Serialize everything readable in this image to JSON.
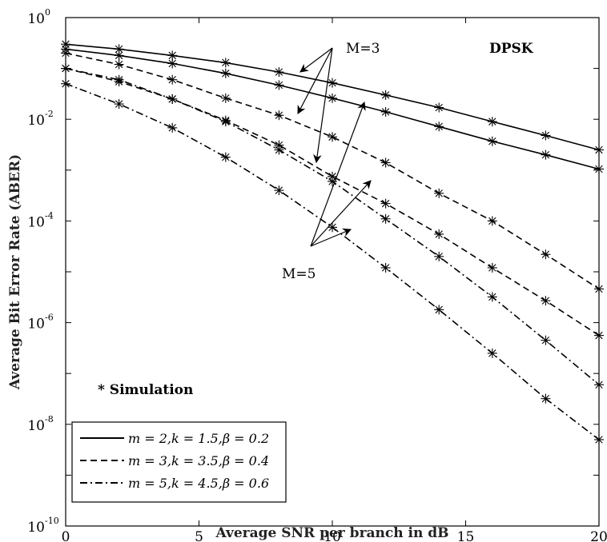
{
  "chart_data": {
    "type": "line",
    "xlabel": "Average SNR per branch in dB",
    "ylabel": "Average Bit Error Rate (ABER)",
    "xlim": [
      0,
      20
    ],
    "ylim": [
      1e-10,
      1
    ],
    "yscale": "log",
    "xticks": [
      0,
      5,
      10,
      15,
      20
    ],
    "yticks": [
      {
        "base": "10",
        "exp": "0",
        "value": 1
      },
      {
        "base": "10",
        "exp": "-2",
        "value": 0.01
      },
      {
        "base": "10",
        "exp": "-4",
        "value": 0.0001
      },
      {
        "base": "10",
        "exp": "-6",
        "value": 1e-06
      },
      {
        "base": "10",
        "exp": "-8",
        "value": 1e-08
      },
      {
        "base": "10",
        "exp": "-10",
        "value": 1e-10
      }
    ],
    "grid": false,
    "legend_position": "bottom-left",
    "annotations": {
      "dpsk": "DPSK",
      "m3": "M=3",
      "m5": "M=5",
      "simulation": "* Simulation"
    },
    "x": [
      0,
      2,
      4,
      6,
      8,
      10,
      12,
      14,
      16,
      18,
      20
    ],
    "series": [
      {
        "name": "m = 2,k = 1.5,β = 0.2",
        "style": "solid",
        "M": 3,
        "values": [
          0.3,
          0.24,
          0.18,
          0.13,
          0.085,
          0.052,
          0.03,
          0.017,
          0.009,
          0.0048,
          0.0025
        ]
      },
      {
        "name": "",
        "style": "solid",
        "M": 5,
        "values": [
          0.24,
          0.18,
          0.125,
          0.08,
          0.047,
          0.026,
          0.014,
          0.0072,
          0.0037,
          0.002,
          0.00105
        ]
      },
      {
        "name": "m = 3,k = 3.5,β = 0.4",
        "style": "dashed",
        "M": 3,
        "values": [
          0.2,
          0.12,
          0.06,
          0.026,
          0.012,
          0.0045,
          0.0014,
          0.00035,
          0.0001,
          2.2e-05,
          4.6e-06
        ]
      },
      {
        "name": "",
        "style": "dashed",
        "M": 5,
        "values": [
          0.1,
          0.055,
          0.025,
          0.0095,
          0.0031,
          0.00075,
          0.00022,
          5.5e-05,
          1.2e-05,
          2.7e-06,
          5.6e-07
        ]
      },
      {
        "name": "m = 5,k = 4.5,β = 0.6",
        "style": "dashdot",
        "M": 3,
        "values": [
          0.1,
          0.06,
          0.025,
          0.009,
          0.0025,
          0.0006,
          0.00011,
          2e-05,
          3.2e-06,
          4.5e-07,
          6e-08
        ]
      },
      {
        "name": "",
        "style": "dashdot",
        "M": 5,
        "values": [
          0.05,
          0.02,
          0.0068,
          0.0018,
          0.0004,
          7.5e-05,
          1.2e-05,
          1.8e-06,
          2.5e-07,
          3.2e-08,
          5e-09
        ]
      }
    ],
    "legend": [
      {
        "label": "m = 2,k = 1.5,β = 0.2",
        "style": "solid"
      },
      {
        "label": "m = 3,k = 3.5,β = 0.4",
        "style": "dashed"
      },
      {
        "label": "m = 5,k = 4.5,β = 0.6",
        "style": "dashdot"
      }
    ]
  }
}
